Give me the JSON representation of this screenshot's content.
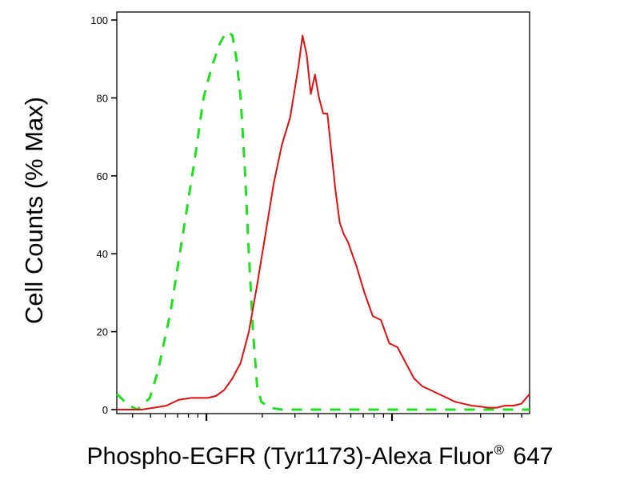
{
  "chart_data": {
    "type": "line",
    "title": "",
    "ylabel": "Cell Counts (% Max)",
    "xlabel": {
      "main": "Phospho-EGFR (Tyr1173)-Alexa Fluor",
      "sup": "®",
      "suffix": " 647"
    },
    "x_scale": "log",
    "y_ticks": [
      "0",
      "20",
      "40",
      "60",
      "80",
      "100"
    ],
    "ylim": [
      0,
      100
    ],
    "series": [
      {
        "color": "#22dd22",
        "style": "dashed",
        "x": [
          0.0,
          0.03,
          0.05,
          0.08,
          0.1,
          0.13,
          0.16,
          0.19,
          0.21,
          0.23,
          0.25,
          0.26,
          0.27,
          0.28,
          0.29,
          0.3,
          0.31,
          0.32,
          0.33,
          0.34,
          0.35,
          0.37,
          0.4,
          0.5,
          0.6,
          0.7,
          0.8,
          0.9,
          1.0
        ],
        "y": [
          4,
          1,
          0,
          3,
          10,
          25,
          45,
          65,
          80,
          88,
          94,
          96,
          97,
          96,
          90,
          80,
          62,
          40,
          20,
          6,
          2,
          0.5,
          0,
          0,
          0,
          0,
          0,
          0,
          0
        ]
      },
      {
        "color": "#dd1111",
        "style": "solid",
        "x": [
          0.0,
          0.03,
          0.06,
          0.09,
          0.12,
          0.15,
          0.18,
          0.2,
          0.22,
          0.24,
          0.26,
          0.28,
          0.3,
          0.32,
          0.34,
          0.36,
          0.38,
          0.4,
          0.42,
          0.44,
          0.45,
          0.46,
          0.47,
          0.48,
          0.49,
          0.5,
          0.51,
          0.52,
          0.53,
          0.54,
          0.55,
          0.56,
          0.57,
          0.58,
          0.6,
          0.62,
          0.64,
          0.66,
          0.68,
          0.7,
          0.72,
          0.74,
          0.76,
          0.78,
          0.8,
          0.82,
          0.84,
          0.86,
          0.88,
          0.9,
          0.92,
          0.94,
          0.96,
          0.98,
          1.0
        ],
        "y": [
          0,
          0,
          0,
          0.5,
          1,
          2.5,
          3,
          3,
          3,
          3.5,
          5,
          8,
          12,
          20,
          32,
          45,
          58,
          68,
          75,
          88,
          96,
          91,
          81,
          86,
          80,
          76,
          76,
          66,
          56,
          48,
          45,
          43,
          40,
          37,
          30,
          24,
          23,
          17,
          16,
          12,
          8,
          6,
          5,
          4,
          3,
          2,
          1.5,
          1,
          0.8,
          0.5,
          0.5,
          1,
          1,
          1.5,
          4
        ]
      }
    ]
  }
}
